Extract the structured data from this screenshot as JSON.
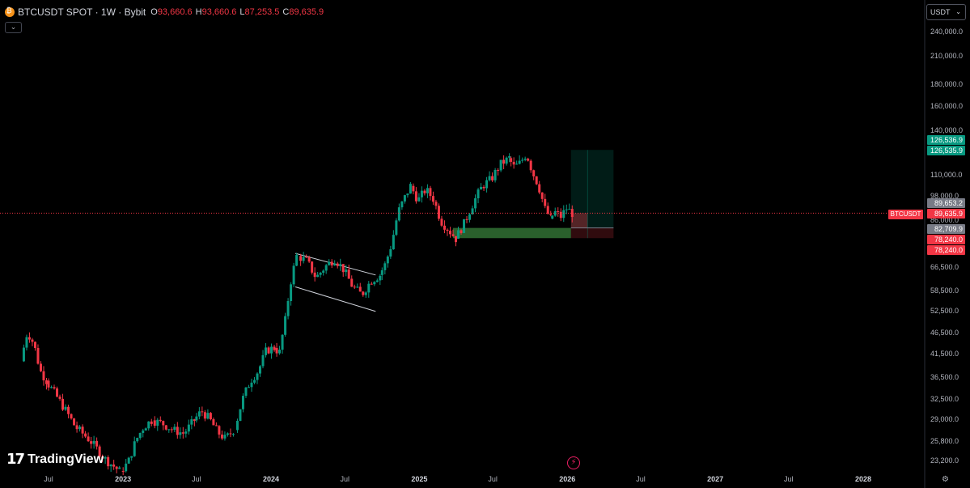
{
  "legend": {
    "symbol": "BTCUSDT SPOT · 1W · Bybit",
    "o_label": "O",
    "o_value": "93,660.6",
    "h_label": "H",
    "h_value": "93,660.6",
    "l_label": "L",
    "l_value": "87,253.5",
    "c_label": "C",
    "c_value": "89,635.9"
  },
  "collapse_glyph": "⌄",
  "currency": {
    "label": "USDT",
    "chevron": "⌄"
  },
  "symbol_badge": "BTCUSDT",
  "price_labels": [
    {
      "text": "126,536.9",
      "color": "#089981"
    },
    {
      "text": "126,535.9",
      "color": "#089981"
    },
    {
      "text": "89,653.2",
      "color": "#787b86"
    },
    {
      "text": "89,635.9",
      "color": "#f23645"
    },
    {
      "text": "82,709.9",
      "color": "#787b86"
    },
    {
      "text": "78,240.0",
      "color": "#f23645"
    },
    {
      "text": "78,240.0",
      "color": "#f23645"
    }
  ],
  "brand": {
    "mark": "17",
    "word": "TradingView"
  },
  "icons": {
    "bolt": "bolt-icon",
    "settings": "settings-icon"
  },
  "bolt_glyph": "⚡",
  "settings_glyph": "⚙",
  "colors": {
    "up": "#089981",
    "down": "#f23645",
    "background": "#000000",
    "text": "#b2b5be"
  },
  "chart_data": {
    "type": "candlestick",
    "symbol": "BTCUSDT",
    "interval": "1W",
    "exchange": "Bybit",
    "scale": "log",
    "y_ticks": [
      "240,000.0",
      "210,000.0",
      "180,000.0",
      "160,000.0",
      "140,000.0",
      "110,000.0",
      "98,000.0",
      "86,000.0",
      "66,500.0",
      "58,500.0",
      "52,500.0",
      "46,500.0",
      "41,500.0",
      "36,500.0",
      "32,500.0",
      "29,000.0",
      "25,800.0",
      "23,200.0"
    ],
    "y_tick_values": [
      240000,
      210000,
      180000,
      160000,
      140000,
      110000,
      98000,
      86000,
      66500,
      58500,
      52500,
      46500,
      41500,
      36500,
      32500,
      29000,
      25800,
      23200
    ],
    "x_ticks": [
      {
        "label": "Jul",
        "date": "2022-07-01",
        "year": false
      },
      {
        "label": "2023",
        "date": "2023-01-01",
        "year": true
      },
      {
        "label": "Jul",
        "date": "2023-07-01",
        "year": false
      },
      {
        "label": "2024",
        "date": "2024-01-01",
        "year": true
      },
      {
        "label": "Jul",
        "date": "2024-07-01",
        "year": false
      },
      {
        "label": "2025",
        "date": "2025-01-01",
        "year": true
      },
      {
        "label": "Jul",
        "date": "2025-07-01",
        "year": false
      },
      {
        "label": "2026",
        "date": "2026-01-01",
        "year": true
      },
      {
        "label": "Jul",
        "date": "2026-07-01",
        "year": false
      },
      {
        "label": "2027",
        "date": "2027-01-01",
        "year": true
      },
      {
        "label": "Jul",
        "date": "2027-07-01",
        "year": false
      },
      {
        "label": "2028",
        "date": "2028-01-01",
        "year": true
      }
    ],
    "last_price": 89635.9,
    "closes": [
      {
        "start": "2022-05-01",
        "end": "2022-07-01",
        "points": [
          [
            40000,
            47000
          ],
          [
            47000,
            44000
          ],
          [
            44000,
            38000
          ],
          [
            38000,
            36000
          ]
        ]
      },
      {
        "start": "2022-07-01",
        "end": "2022-12-31",
        "points": [
          [
            36000,
            32000
          ],
          [
            32000,
            28000
          ],
          [
            28000,
            26000
          ],
          [
            26000,
            23500
          ],
          [
            23500,
            22000
          ]
        ]
      },
      {
        "start": "2023-01-01",
        "end": "2023-03-20",
        "points": [
          [
            22000,
            23000
          ],
          [
            23000,
            26000
          ],
          [
            26000,
            28000
          ],
          [
            28000,
            29000
          ]
        ]
      },
      {
        "start": "2023-03-20",
        "end": "2023-07-01",
        "points": [
          [
            29000,
            28500
          ],
          [
            28500,
            27500
          ],
          [
            27500,
            27000
          ],
          [
            27000,
            29000
          ]
        ]
      },
      {
        "start": "2023-07-01",
        "end": "2023-10-10",
        "points": [
          [
            29000,
            30500
          ],
          [
            30500,
            29200
          ],
          [
            29200,
            27200
          ],
          [
            27200,
            26200
          ],
          [
            26200,
            27500
          ]
        ]
      },
      {
        "start": "2023-10-10",
        "end": "2024-01-15",
        "points": [
          [
            27500,
            32500
          ],
          [
            32500,
            36000
          ],
          [
            36000,
            38000
          ],
          [
            38000,
            42500
          ],
          [
            42500,
            43000
          ]
        ]
      },
      {
        "start": "2024-01-15",
        "end": "2024-03-14",
        "points": [
          [
            43000,
            42000
          ],
          [
            42000,
            50000
          ],
          [
            50000,
            62000
          ],
          [
            62000,
            71000
          ]
        ]
      },
      {
        "start": "2024-03-14",
        "end": "2024-10-01",
        "points": [
          [
            71000,
            69000
          ],
          [
            69000,
            63000
          ],
          [
            63000,
            67000
          ],
          [
            67000,
            70000
          ],
          [
            70000,
            66000
          ],
          [
            66000,
            60000
          ],
          [
            60000,
            57500
          ],
          [
            57500,
            62000
          ],
          [
            62000,
            64000
          ]
        ]
      },
      {
        "start": "2024-10-01",
        "end": "2024-12-17",
        "points": [
          [
            64000,
            68000
          ],
          [
            68000,
            76000
          ],
          [
            76000,
            90000
          ],
          [
            90000,
            97000
          ],
          [
            97000,
            104000
          ]
        ]
      },
      {
        "start": "2024-12-17",
        "end": "2025-04-07",
        "points": [
          [
            104000,
            96000
          ],
          [
            96000,
            102000
          ],
          [
            102000,
            97000
          ],
          [
            97000,
            86000
          ],
          [
            86000,
            82000
          ],
          [
            82000,
            78000
          ]
        ]
      },
      {
        "start": "2025-04-07",
        "end": "2025-08-15",
        "points": [
          [
            78000,
            85000
          ],
          [
            85000,
            95000
          ],
          [
            95000,
            104000
          ],
          [
            104000,
            108000
          ],
          [
            108000,
            117000
          ],
          [
            117000,
            121000
          ]
        ]
      },
      {
        "start": "2025-08-15",
        "end": "2025-11-25",
        "points": [
          [
            121000,
            115000
          ],
          [
            115000,
            118000
          ],
          [
            118000,
            124000
          ],
          [
            124000,
            112000
          ],
          [
            112000,
            104000
          ],
          [
            104000,
            92000
          ],
          [
            92000,
            87000
          ]
        ]
      },
      {
        "start": "2025-11-25",
        "end": "2026-01-20",
        "points": [
          [
            87000,
            90000
          ],
          [
            90000,
            88000
          ],
          [
            88000,
            92000
          ],
          [
            92000,
            89635.9
          ]
        ]
      }
    ],
    "annotations": [
      {
        "type": "parallel_channel",
        "lines": [
          {
            "from": [
              "2024-03-01",
              72000
            ],
            "to": [
              "2024-09-15",
              64000
            ]
          },
          {
            "from": [
              "2024-03-01",
              60000
            ],
            "to": [
              "2024-09-15",
              52500
            ]
          }
        ]
      },
      {
        "type": "zone",
        "start": "2025-03-25",
        "end": "2026-01-10",
        "top": 82709.9,
        "bottom": 78240,
        "color": "#4caf50"
      },
      {
        "type": "long_position",
        "start": "2026-01-10",
        "end": "2026-04-25",
        "entry": 82709.9,
        "target": 126536.9,
        "stop": 78240
      }
    ]
  }
}
